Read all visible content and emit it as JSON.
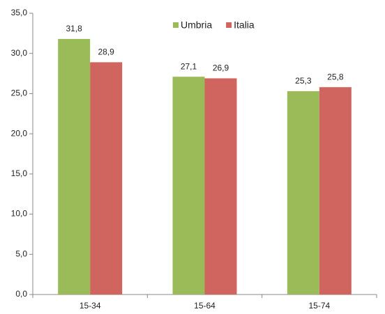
{
  "chart_data": {
    "type": "bar",
    "categories": [
      "15-34",
      "15-64",
      "15-74"
    ],
    "series": [
      {
        "name": "Umbria",
        "color": "#9bbb59",
        "values": [
          31.8,
          27.1,
          25.3
        ],
        "value_labels": [
          "31,8",
          "27,1",
          "25,3"
        ]
      },
      {
        "name": "Italia",
        "color": "#d0645e",
        "values": [
          28.9,
          26.9,
          25.8
        ],
        "value_labels": [
          "28,9",
          "26,9",
          "25,8"
        ]
      }
    ],
    "ylim": [
      0,
      35
    ],
    "yticks": [
      {
        "value": 0,
        "label": "0,0"
      },
      {
        "value": 5,
        "label": "5,0"
      },
      {
        "value": 10,
        "label": "10,0"
      },
      {
        "value": 15,
        "label": "15,0"
      },
      {
        "value": 20,
        "label": "20,0"
      },
      {
        "value": 25,
        "label": "25,0"
      },
      {
        "value": 30,
        "label": "30,0"
      },
      {
        "value": 35,
        "label": "35,0"
      }
    ],
    "legend": "top",
    "grid": false
  }
}
